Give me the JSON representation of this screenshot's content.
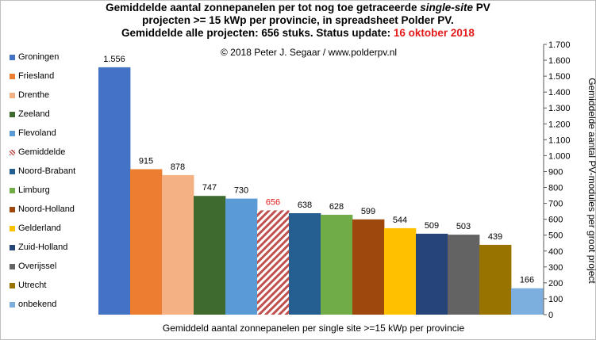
{
  "title": {
    "line1_a": "Gemiddelde aantal zonnepanelen per tot nog toe getraceerde ",
    "line1_em": "single-site",
    "line1_b": " PV",
    "line2": "projecten >= 15 kWp per provincie, in spreadsheet Polder PV.",
    "line3_a": "Gemiddelde alle projecten: 656 stuks. Status update: ",
    "line3_date": "16 oktober 2018"
  },
  "copyright": "© 2018 Peter J. Segaar / www.polderpv.nl",
  "colors": {
    "highlight_red": "#e41a1a",
    "hatch": "#c0504d"
  },
  "chart_data": {
    "type": "bar",
    "categories": [
      "Groningen",
      "Friesland",
      "Drenthe",
      "Zeeland",
      "Flevoland",
      "Gemiddelde",
      "Noord-Brabant",
      "Limburg",
      "Noord-Holland",
      "Gelderland",
      "Zuid-Holland",
      "Overijssel",
      "Utrecht",
      "onbekend"
    ],
    "values": [
      1556,
      915,
      878,
      747,
      730,
      656,
      638,
      628,
      599,
      544,
      509,
      503,
      439,
      166
    ],
    "value_labels": [
      "1.556",
      "915",
      "878",
      "747",
      "730",
      "656",
      "638",
      "628",
      "599",
      "544",
      "509",
      "503",
      "439",
      "166"
    ],
    "colors": [
      "#4472c4",
      "#ed7d31",
      "#f4b183",
      "#3e6a2e",
      "#5b9bd5",
      "hatch",
      "#255e91",
      "#70ad47",
      "#9e480e",
      "#ffc000",
      "#264478",
      "#636363",
      "#997300",
      "#7cafdd"
    ],
    "xlabel": "Gemiddeld aantal zonnepanelen per single site >=15 kWp per provincie",
    "ylabel": "Gemiddelde aantal PV-modules per groot project",
    "ylim": [
      0,
      1700
    ],
    "yticks": [
      0,
      100,
      200,
      300,
      400,
      500,
      600,
      700,
      800,
      900,
      1000,
      1100,
      1200,
      1300,
      1400,
      1500,
      1600,
      1700
    ],
    "ytick_labels": [
      "0",
      "100",
      "200",
      "300",
      "400",
      "500",
      "600",
      "700",
      "800",
      "900",
      "1.000",
      "1.100",
      "1.200",
      "1.300",
      "1.400",
      "1.500",
      "1.600",
      "1.700"
    ],
    "y_axis_side": "right",
    "grid": false,
    "legend_placement": "left"
  }
}
